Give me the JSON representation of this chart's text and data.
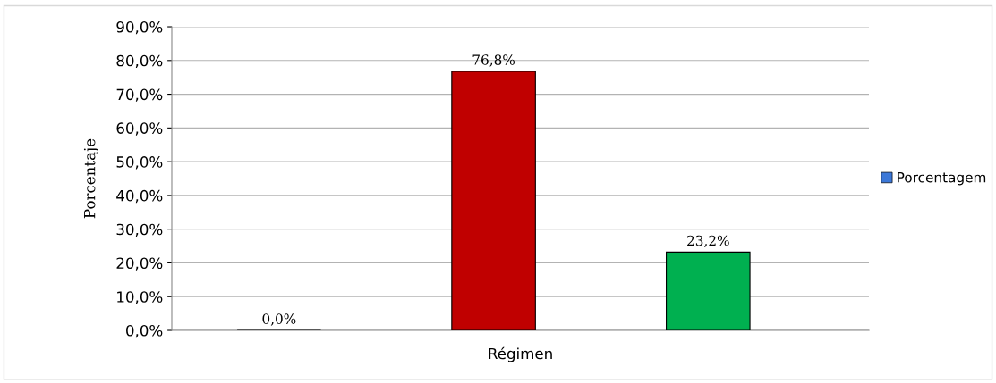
{
  "chart_data": {
    "type": "bar",
    "xlabel": "Régimen",
    "ylabel": "Porcentaje",
    "categories": [
      null,
      null,
      null
    ],
    "series": [
      {
        "name": "Porcentagem",
        "color": "#3c78d8",
        "colors": [
          "#000000",
          "#c00000",
          "#00b050"
        ],
        "values": [
          0.0,
          76.8,
          23.2
        ],
        "value_labels": [
          "0,0%",
          "76,8%",
          "23,2%"
        ]
      }
    ],
    "ylim": [
      0,
      90
    ],
    "yticks": [
      {
        "value": 0,
        "label": "0,0%"
      },
      {
        "value": 10,
        "label": "10,0%"
      },
      {
        "value": 20,
        "label": "20,0%"
      },
      {
        "value": 30,
        "label": "30,0%"
      },
      {
        "value": 40,
        "label": "40,0%"
      },
      {
        "value": 50,
        "label": "50,0%"
      },
      {
        "value": 60,
        "label": "60,0%"
      },
      {
        "value": 70,
        "label": "70,0%"
      },
      {
        "value": 80,
        "label": "80,0%"
      },
      {
        "value": 90,
        "label": "90,0%"
      }
    ],
    "grid": "y",
    "legend": "right"
  }
}
